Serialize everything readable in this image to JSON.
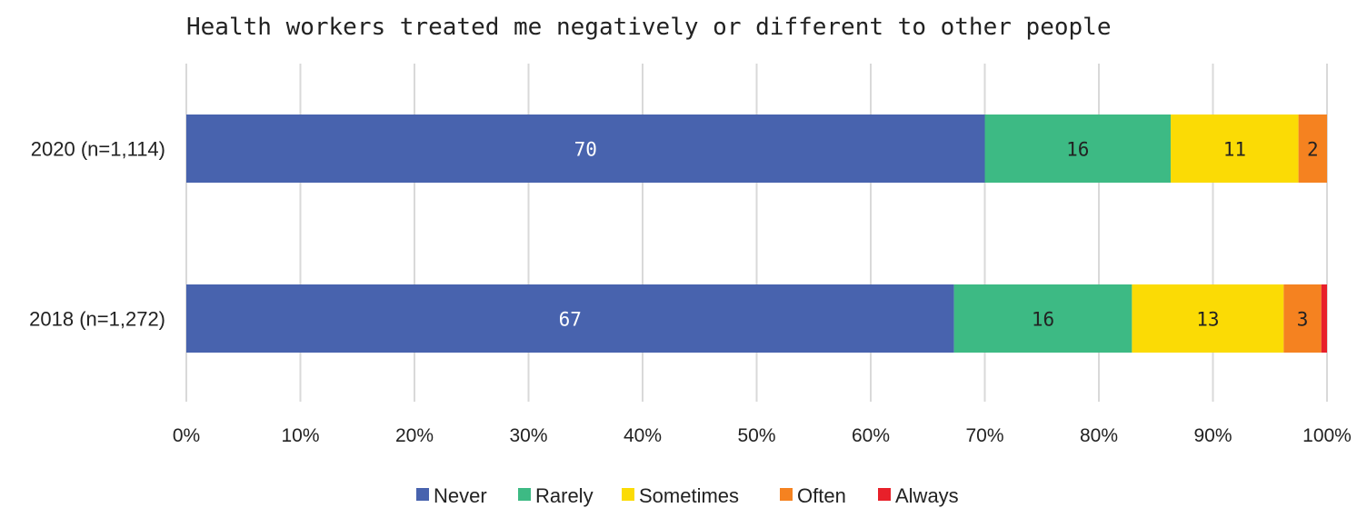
{
  "chart_data": {
    "type": "bar",
    "orientation": "horizontal",
    "stacked": true,
    "title": "Health workers treated me negatively or different to other people",
    "xlabel": "",
    "ylabel": "",
    "categories": [
      "2020 (n=1,114)",
      "2018 (n=1,272)"
    ],
    "xlim": [
      0,
      100
    ],
    "x_ticks": [
      "0%",
      "10%",
      "20%",
      "30%",
      "40%",
      "50%",
      "60%",
      "70%",
      "80%",
      "90%",
      "100%"
    ],
    "grid": true,
    "legend_position": "bottom",
    "series": [
      {
        "name": "Never",
        "color": "#4863ae",
        "label_color": "#ffffff",
        "values": [
          70,
          67.3
        ],
        "labels": [
          "70",
          "67"
        ]
      },
      {
        "name": "Rarely",
        "color": "#3dba84",
        "label_color": "#222222",
        "values": [
          16.3,
          15.6
        ],
        "labels": [
          "16",
          "16"
        ]
      },
      {
        "name": "Sometimes",
        "color": "#fbdb05",
        "label_color": "#222222",
        "values": [
          11.2,
          13.3
        ],
        "labels": [
          "11",
          "13"
        ]
      },
      {
        "name": "Often",
        "color": "#f58220",
        "label_color": "#222222",
        "values": [
          2.5,
          3.3
        ],
        "labels": [
          "2",
          "3"
        ]
      },
      {
        "name": "Always",
        "color": "#e8202a",
        "label_color": "#222222",
        "values": [
          0,
          0.5
        ],
        "labels": [
          "",
          ""
        ]
      }
    ]
  }
}
